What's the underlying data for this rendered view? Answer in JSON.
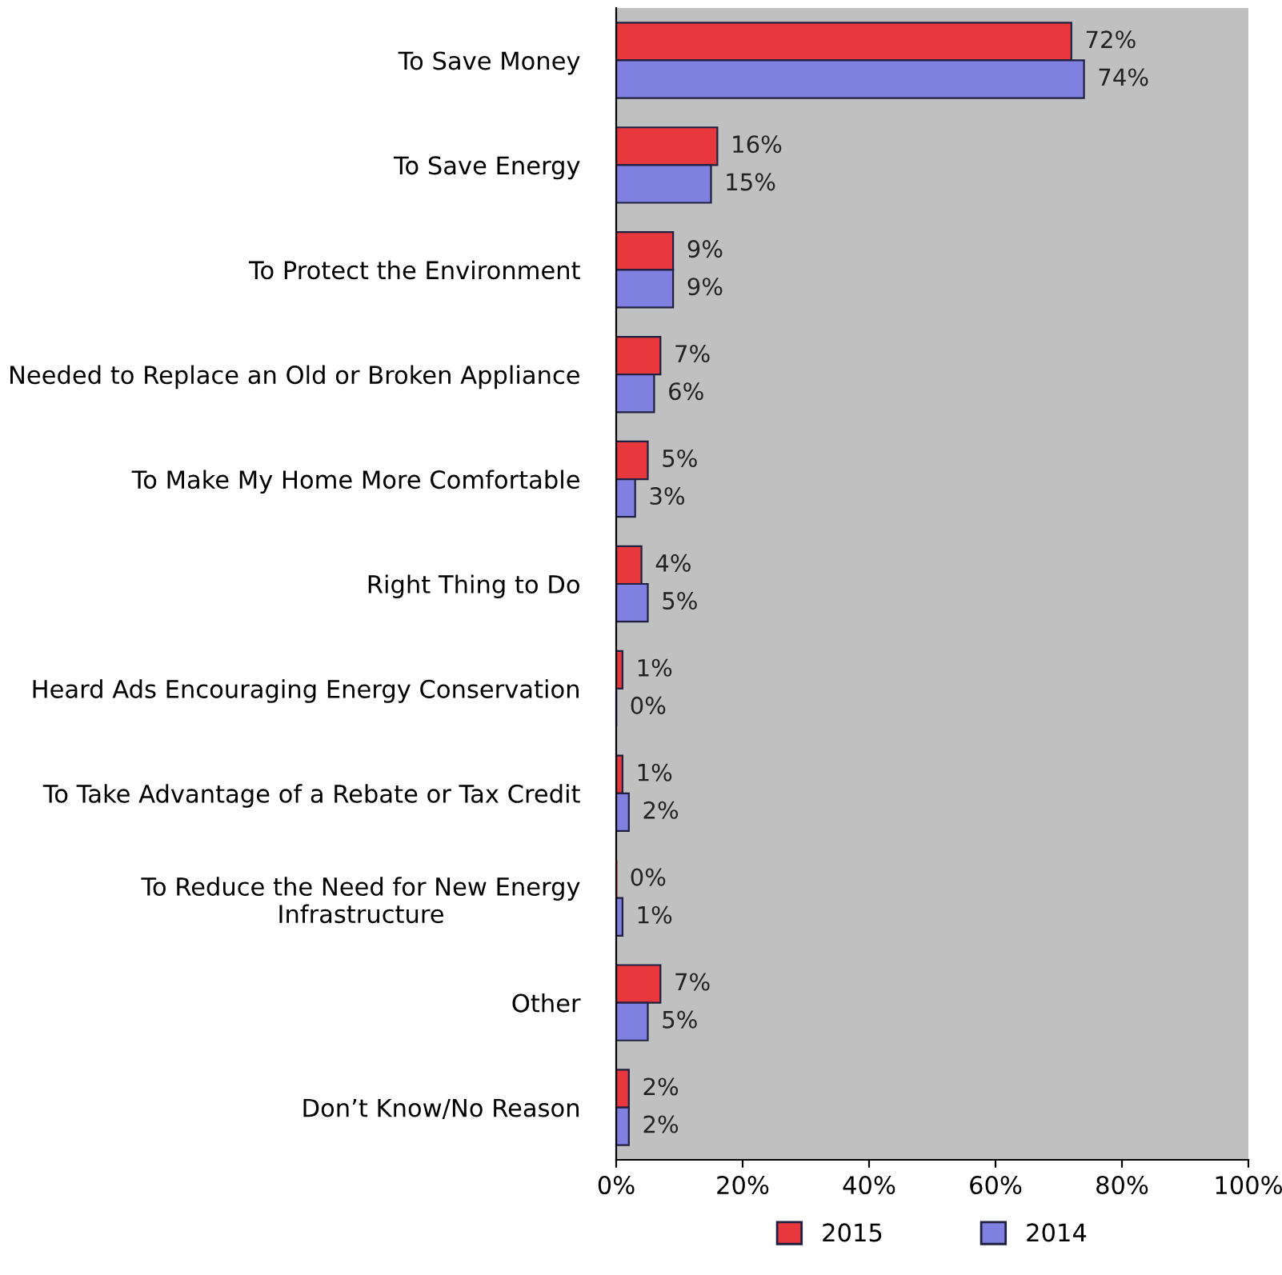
{
  "chart_data": {
    "type": "bar",
    "orientation": "horizontal",
    "categories": [
      "To Save Money",
      "To Save Energy",
      "To Protect the Environment",
      "Needed to Replace an Old or Broken Appliance",
      "To Make My Home More Comfortable",
      "Right Thing to Do",
      "Heard Ads Encouraging Energy Conservation",
      "To Take Advantage of a Rebate or Tax Credit",
      "To Reduce the Need for New Energy\nInfrastructure",
      "Other",
      "Don’t Know/No Reason"
    ],
    "series": [
      {
        "name": "2015",
        "color": "#e8383d",
        "values": [
          72,
          16,
          9,
          7,
          5,
          4,
          1,
          1,
          0,
          7,
          2
        ],
        "value_labels": [
          "72%",
          "16%",
          "9%",
          "7%",
          "5%",
          "4%",
          "1%",
          "1%",
          "0%",
          "7%",
          "2%"
        ]
      },
      {
        "name": "2014",
        "color": "#8080e0",
        "values": [
          74,
          15,
          9,
          6,
          3,
          5,
          0,
          2,
          1,
          5,
          2
        ],
        "value_labels": [
          "74%",
          "15%",
          "9%",
          "6%",
          "3%",
          "5%",
          "0%",
          "2%",
          "1%",
          "5%",
          "2%"
        ]
      }
    ],
    "xlim": [
      0,
      100
    ],
    "xticks": [
      {
        "value": 0,
        "label": "0%"
      },
      {
        "value": 20,
        "label": "20%"
      },
      {
        "value": 40,
        "label": "40%"
      },
      {
        "value": 60,
        "label": "60%"
      },
      {
        "value": 80,
        "label": "80%"
      },
      {
        "value": 100,
        "label": "100%"
      }
    ],
    "grid": false,
    "legend": "bottom"
  }
}
